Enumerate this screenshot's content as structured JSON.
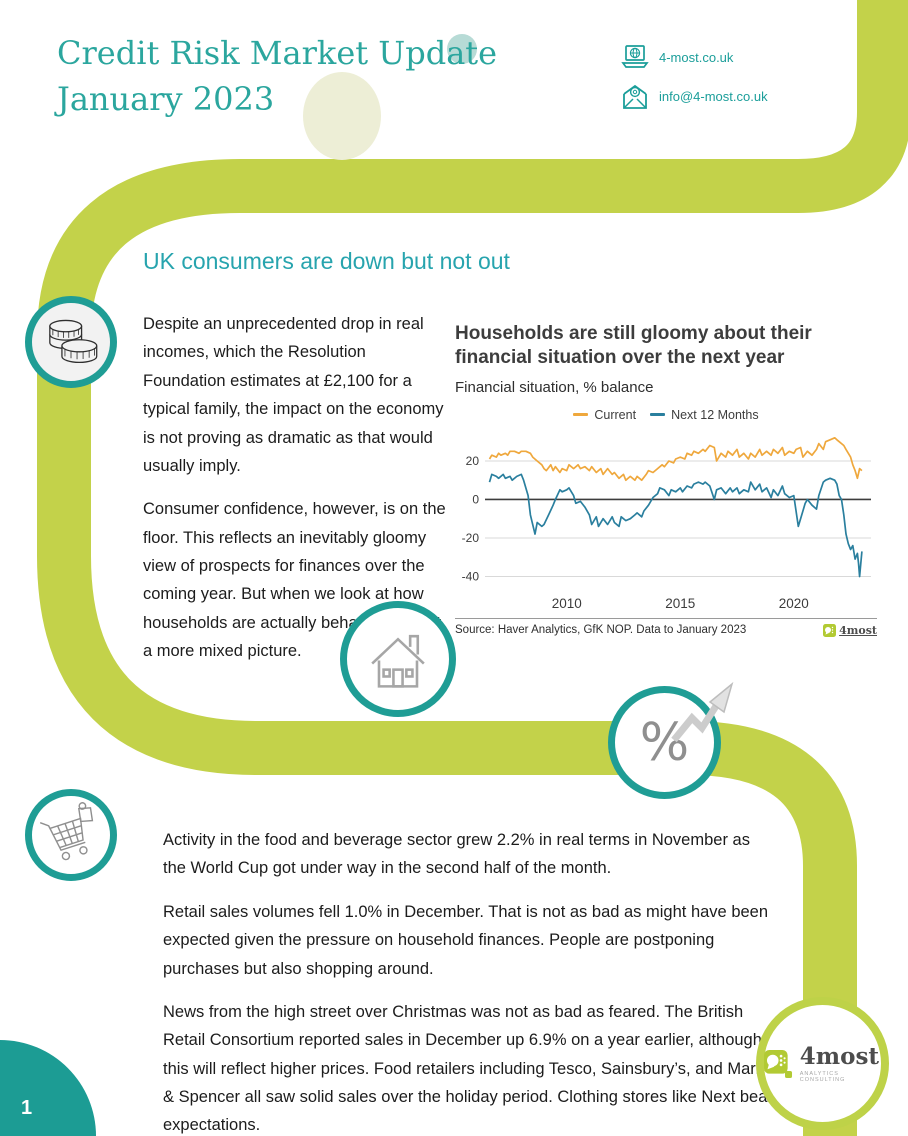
{
  "header": {
    "title_line1": "Credit Risk Market Update",
    "title_line2": "January 2023",
    "contact": {
      "website": "4-most.co.uk",
      "email": "info@4-most.co.uk"
    }
  },
  "section_heading": "UK consumers are down but not out",
  "left_column": {
    "paragraphs": [
      "Despite an unprecedented drop in real incomes, which the Resolution Foundation estimates at £2,100 for a typical family, the impact on the economy is not proving as dramatic as that would usually imply.",
      "Consumer confidence, however, is on the floor. This reflects an inevitably gloomy view of prospects for finances over the coming year. But when we look at how households are actually behaving we get a more mixed picture."
    ]
  },
  "bottom_column": {
    "paragraphs": [
      "Activity in the food and beverage sector grew 2.2% in real terms in November as the World Cup got under way in the second half of the month.",
      "Retail sales volumes fell 1.0% in December. That is not as bad as might have been expected given the pressure on household finances. People are postponing purchases but also shopping around.",
      "News from the high street over Christmas was not as bad as feared. The British Retail Consortium reported sales in December up 6.9% on a year earlier, although this will reflect higher prices.  Food retailers including Tesco, Sainsbury’s, and Marks & Spencer all saw solid sales over the holiday period. Clothing stores like Next beat expectations."
    ]
  },
  "chart_data": {
    "type": "line",
    "title": "Households are still gloomy about their financial situation over the next year",
    "subtitle": "Financial situation, % balance",
    "source": "Source: Haver Analytics, GfK NOP. Data to January 2023",
    "source_logo": "4most",
    "legend_position": "top",
    "grid": true,
    "xlim": [
      2006.4,
      2023.4
    ],
    "ylim": [
      -46,
      34
    ],
    "yticks": [
      20,
      0,
      -20,
      -40
    ],
    "xticks": [
      2010,
      2015,
      2020
    ],
    "series": [
      {
        "name": "Current",
        "color": "#efa83d",
        "points": [
          [
            2006.6,
            21
          ],
          [
            2006.7,
            23
          ],
          [
            2006.9,
            22
          ],
          [
            2007.0,
            24
          ],
          [
            2007.1,
            23
          ],
          [
            2007.3,
            24
          ],
          [
            2007.4,
            23
          ],
          [
            2007.5,
            25
          ],
          [
            2007.7,
            25
          ],
          [
            2007.9,
            24
          ],
          [
            2008.0,
            25
          ],
          [
            2008.2,
            25
          ],
          [
            2008.4,
            24
          ],
          [
            2008.5,
            22
          ],
          [
            2008.7,
            20
          ],
          [
            2008.9,
            18
          ],
          [
            2009.0,
            16
          ],
          [
            2009.1,
            15
          ],
          [
            2009.3,
            18
          ],
          [
            2009.4,
            15
          ],
          [
            2009.5,
            17
          ],
          [
            2009.7,
            14
          ],
          [
            2009.8,
            16
          ],
          [
            2010.0,
            15
          ],
          [
            2010.1,
            18
          ],
          [
            2010.3,
            16
          ],
          [
            2010.5,
            18
          ],
          [
            2010.6,
            16
          ],
          [
            2010.8,
            17
          ],
          [
            2011.0,
            15
          ],
          [
            2011.1,
            17
          ],
          [
            2011.3,
            14
          ],
          [
            2011.5,
            16
          ],
          [
            2011.6,
            13
          ],
          [
            2011.8,
            16
          ],
          [
            2012.0,
            13
          ],
          [
            2012.1,
            14
          ],
          [
            2012.3,
            11
          ],
          [
            2012.5,
            13
          ],
          [
            2012.6,
            10
          ],
          [
            2012.8,
            12
          ],
          [
            2013.0,
            10
          ],
          [
            2013.1,
            12
          ],
          [
            2013.3,
            10
          ],
          [
            2013.5,
            13
          ],
          [
            2013.6,
            15
          ],
          [
            2013.8,
            14
          ],
          [
            2014.0,
            16
          ],
          [
            2014.2,
            18
          ],
          [
            2014.3,
            17
          ],
          [
            2014.5,
            20
          ],
          [
            2014.7,
            19
          ],
          [
            2014.8,
            21
          ],
          [
            2015.0,
            22
          ],
          [
            2015.2,
            21
          ],
          [
            2015.3,
            24
          ],
          [
            2015.5,
            23
          ],
          [
            2015.6,
            25
          ],
          [
            2015.8,
            24
          ],
          [
            2016.0,
            26
          ],
          [
            2016.1,
            25
          ],
          [
            2016.3,
            28
          ],
          [
            2016.5,
            27
          ],
          [
            2016.6,
            20
          ],
          [
            2016.8,
            24
          ],
          [
            2017.0,
            22
          ],
          [
            2017.1,
            25
          ],
          [
            2017.3,
            23
          ],
          [
            2017.5,
            26
          ],
          [
            2017.6,
            22
          ],
          [
            2017.8,
            24
          ],
          [
            2018.0,
            21
          ],
          [
            2018.1,
            24
          ],
          [
            2018.3,
            22
          ],
          [
            2018.5,
            26
          ],
          [
            2018.6,
            23
          ],
          [
            2018.8,
            25
          ],
          [
            2019.0,
            23
          ],
          [
            2019.1,
            26
          ],
          [
            2019.3,
            24
          ],
          [
            2019.5,
            27
          ],
          [
            2019.6,
            23
          ],
          [
            2019.8,
            25
          ],
          [
            2020.0,
            24
          ],
          [
            2020.1,
            26
          ],
          [
            2020.3,
            27
          ],
          [
            2020.4,
            22
          ],
          [
            2020.6,
            25
          ],
          [
            2020.8,
            23
          ],
          [
            2021.0,
            26
          ],
          [
            2021.1,
            29
          ],
          [
            2021.3,
            26
          ],
          [
            2021.4,
            30
          ],
          [
            2021.6,
            31
          ],
          [
            2021.8,
            32
          ],
          [
            2021.9,
            31
          ],
          [
            2022.0,
            30
          ],
          [
            2022.2,
            28
          ],
          [
            2022.3,
            26
          ],
          [
            2022.5,
            22
          ],
          [
            2022.6,
            18
          ],
          [
            2022.7,
            15
          ],
          [
            2022.8,
            11
          ],
          [
            2022.9,
            16
          ],
          [
            2023.0,
            15
          ]
        ]
      },
      {
        "name": "Next 12 Months",
        "color": "#2a7f9e",
        "points": [
          [
            2006.6,
            9
          ],
          [
            2006.7,
            13
          ],
          [
            2006.9,
            12
          ],
          [
            2007.0,
            11
          ],
          [
            2007.2,
            13
          ],
          [
            2007.3,
            11
          ],
          [
            2007.5,
            12
          ],
          [
            2007.6,
            10
          ],
          [
            2007.8,
            12
          ],
          [
            2008.0,
            13
          ],
          [
            2008.1,
            10
          ],
          [
            2008.3,
            2
          ],
          [
            2008.4,
            -8
          ],
          [
            2008.6,
            -18
          ],
          [
            2008.7,
            -12
          ],
          [
            2008.9,
            -14
          ],
          [
            2009.0,
            -13
          ],
          [
            2009.2,
            -8
          ],
          [
            2009.4,
            -3
          ],
          [
            2009.5,
            0
          ],
          [
            2009.7,
            5
          ],
          [
            2009.8,
            4
          ],
          [
            2010.0,
            5
          ],
          [
            2010.1,
            6
          ],
          [
            2010.3,
            2
          ],
          [
            2010.4,
            -2
          ],
          [
            2010.6,
            -1
          ],
          [
            2010.8,
            -4
          ],
          [
            2011.0,
            -8
          ],
          [
            2011.1,
            -13
          ],
          [
            2011.3,
            -9
          ],
          [
            2011.4,
            -14
          ],
          [
            2011.6,
            -10
          ],
          [
            2011.8,
            -13
          ],
          [
            2012.0,
            -9
          ],
          [
            2012.1,
            -12
          ],
          [
            2012.3,
            -14
          ],
          [
            2012.4,
            -9
          ],
          [
            2012.6,
            -11
          ],
          [
            2012.8,
            -10
          ],
          [
            2013.0,
            -8
          ],
          [
            2013.1,
            -7
          ],
          [
            2013.3,
            -9
          ],
          [
            2013.4,
            -6
          ],
          [
            2013.6,
            -3
          ],
          [
            2013.8,
            1
          ],
          [
            2014.0,
            3
          ],
          [
            2014.1,
            6
          ],
          [
            2014.3,
            5
          ],
          [
            2014.5,
            2
          ],
          [
            2014.6,
            5
          ],
          [
            2014.8,
            4
          ],
          [
            2015.0,
            6
          ],
          [
            2015.1,
            4
          ],
          [
            2015.3,
            7
          ],
          [
            2015.5,
            6
          ],
          [
            2015.6,
            8
          ],
          [
            2015.8,
            9
          ],
          [
            2016.0,
            8
          ],
          [
            2016.1,
            9
          ],
          [
            2016.3,
            7
          ],
          [
            2016.5,
            0
          ],
          [
            2016.6,
            5
          ],
          [
            2016.8,
            6
          ],
          [
            2017.0,
            3
          ],
          [
            2017.2,
            6
          ],
          [
            2017.3,
            4
          ],
          [
            2017.5,
            6
          ],
          [
            2017.6,
            3
          ],
          [
            2017.8,
            5
          ],
          [
            2018.0,
            4
          ],
          [
            2018.1,
            9
          ],
          [
            2018.3,
            5
          ],
          [
            2018.5,
            8
          ],
          [
            2018.6,
            4
          ],
          [
            2018.8,
            6
          ],
          [
            2019.0,
            1
          ],
          [
            2019.1,
            5
          ],
          [
            2019.3,
            2
          ],
          [
            2019.5,
            7
          ],
          [
            2019.6,
            3
          ],
          [
            2019.8,
            1
          ],
          [
            2020.0,
            2
          ],
          [
            2020.2,
            -14
          ],
          [
            2020.3,
            -10
          ],
          [
            2020.5,
            -2
          ],
          [
            2020.6,
            0
          ],
          [
            2020.8,
            -3
          ],
          [
            2021.0,
            -5
          ],
          [
            2021.1,
            2
          ],
          [
            2021.3,
            9
          ],
          [
            2021.4,
            10
          ],
          [
            2021.6,
            11
          ],
          [
            2021.8,
            10
          ],
          [
            2021.9,
            8
          ],
          [
            2022.0,
            2
          ],
          [
            2022.1,
            0
          ],
          [
            2022.2,
            -8
          ],
          [
            2022.3,
            -18
          ],
          [
            2022.4,
            -23
          ],
          [
            2022.5,
            -26
          ],
          [
            2022.6,
            -24
          ],
          [
            2022.7,
            -31
          ],
          [
            2022.8,
            -28
          ],
          [
            2022.85,
            -33
          ],
          [
            2022.9,
            -40
          ],
          [
            2023.0,
            -27
          ]
        ]
      }
    ]
  },
  "footer": {
    "page_number": "1",
    "logo_name": "4most",
    "logo_tagline": "ANALYTICS CONSULTING"
  },
  "icons": {
    "website": "laptop-globe-icon",
    "email": "envelope-icon",
    "topic1": "coins-icon",
    "topic2": "house-icon",
    "topic3": "percent-growth-icon",
    "topic4": "shopping-cart-icon"
  },
  "colors": {
    "title_teal": "#2ba69e",
    "heading_teal": "#27a4ae",
    "road_green": "#c3d24a",
    "ring_teal": "#1f9d95",
    "chart_orange": "#efa83d",
    "chart_blue": "#2a7f9e",
    "logo_green": "#b2ca33"
  }
}
